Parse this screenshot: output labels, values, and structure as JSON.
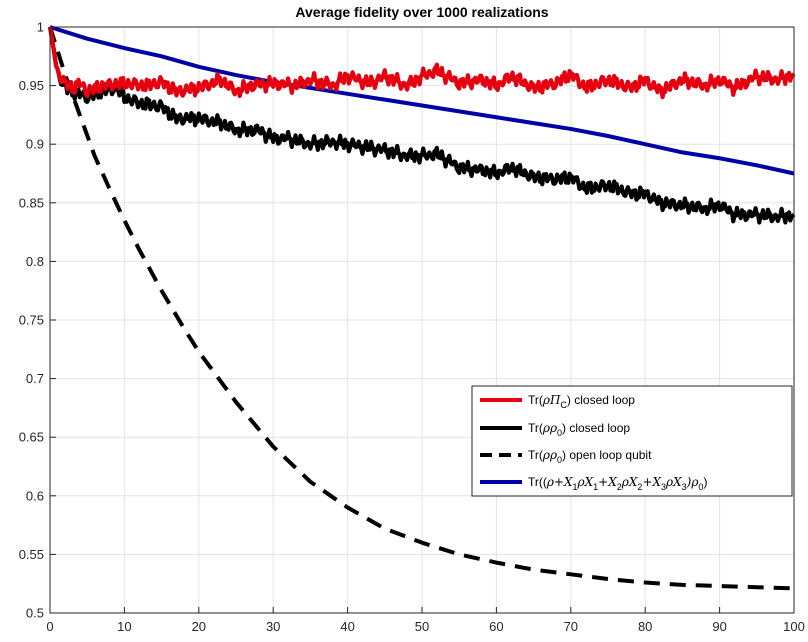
{
  "chart_data": {
    "type": "line",
    "title": "Average fidelity  over 1000 realizations",
    "xlabel": "",
    "ylabel": "",
    "xlim": [
      0,
      100
    ],
    "ylim": [
      0.5,
      1
    ],
    "xticks": [
      "0",
      "10",
      "20",
      "30",
      "40",
      "50",
      "60",
      "70",
      "80",
      "90",
      "100"
    ],
    "yticks": [
      "0.5",
      "0.55",
      "0.6",
      "0.65",
      "0.7",
      "0.75",
      "0.8",
      "0.85",
      "0.9",
      "0.95",
      "1"
    ],
    "grid": true,
    "legend_position": "lower-right",
    "series": [
      {
        "name": "Tr(ρΠ_C) closed loop",
        "color": "#e6000f",
        "style": "solid",
        "x": [
          0,
          1,
          2,
          3,
          4,
          5,
          7,
          10,
          13,
          15,
          17,
          20,
          23,
          25,
          27,
          30,
          33,
          35,
          38,
          40,
          43,
          45,
          48,
          50,
          52,
          55,
          58,
          60,
          62,
          65,
          68,
          70,
          72,
          75,
          78,
          80,
          82,
          85,
          88,
          90,
          92,
          95,
          98,
          100
        ],
        "values": [
          1,
          0.962,
          0.952,
          0.948,
          0.952,
          0.945,
          0.95,
          0.952,
          0.95,
          0.953,
          0.945,
          0.948,
          0.955,
          0.945,
          0.95,
          0.952,
          0.95,
          0.955,
          0.95,
          0.958,
          0.952,
          0.958,
          0.95,
          0.958,
          0.963,
          0.952,
          0.955,
          0.95,
          0.958,
          0.948,
          0.952,
          0.96,
          0.948,
          0.955,
          0.948,
          0.955,
          0.945,
          0.955,
          0.95,
          0.955,
          0.948,
          0.958,
          0.955,
          0.96
        ]
      },
      {
        "name": "Tr(ρρ_0) closed loop",
        "color": "#000000",
        "style": "solid",
        "x": [
          0,
          1,
          2,
          3,
          5,
          7,
          9,
          10,
          12,
          15,
          17,
          20,
          23,
          25,
          28,
          30,
          32,
          35,
          38,
          40,
          42,
          45,
          48,
          50,
          52,
          55,
          58,
          60,
          62,
          65,
          68,
          70,
          72,
          75,
          78,
          80,
          82,
          85,
          88,
          90,
          92,
          95,
          98,
          100
        ],
        "values": [
          1,
          0.962,
          0.948,
          0.945,
          0.94,
          0.945,
          0.948,
          0.94,
          0.935,
          0.932,
          0.922,
          0.922,
          0.918,
          0.912,
          0.912,
          0.905,
          0.905,
          0.9,
          0.902,
          0.9,
          0.898,
          0.895,
          0.89,
          0.89,
          0.892,
          0.88,
          0.878,
          0.875,
          0.88,
          0.872,
          0.87,
          0.872,
          0.862,
          0.865,
          0.858,
          0.858,
          0.85,
          0.848,
          0.845,
          0.848,
          0.84,
          0.84,
          0.838,
          0.84
        ]
      },
      {
        "name": "Tr(ρρ_0) open loop qubit",
        "color": "#000000",
        "style": "dashed",
        "x": [
          0,
          2,
          4,
          6,
          8,
          10,
          12,
          15,
          18,
          20,
          25,
          30,
          35,
          40,
          45,
          50,
          55,
          60,
          65,
          70,
          75,
          80,
          85,
          90,
          95,
          100
        ],
        "values": [
          1,
          0.96,
          0.925,
          0.89,
          0.862,
          0.835,
          0.81,
          0.775,
          0.743,
          0.723,
          0.68,
          0.642,
          0.612,
          0.59,
          0.572,
          0.56,
          0.55,
          0.543,
          0.537,
          0.533,
          0.529,
          0.526,
          0.524,
          0.523,
          0.522,
          0.521
        ]
      },
      {
        "name": "Tr((ρ+X_1ρX_1+X_2ρX_2+X_3ρX_3)ρ_0)",
        "color": "#0000a8",
        "style": "solid",
        "x": [
          0,
          5,
          10,
          15,
          20,
          25,
          30,
          35,
          40,
          45,
          50,
          55,
          60,
          65,
          70,
          75,
          80,
          85,
          90,
          95,
          100
        ],
        "values": [
          1,
          0.99,
          0.982,
          0.975,
          0.966,
          0.959,
          0.953,
          0.948,
          0.943,
          0.938,
          0.933,
          0.928,
          0.923,
          0.918,
          0.913,
          0.907,
          0.9,
          0.893,
          0.888,
          0.882,
          0.875
        ]
      }
    ]
  },
  "legend": {
    "entries": [
      {
        "prefix": "Tr(",
        "math": "ρΠ",
        "sub": "C",
        "suffix": ") closed loop"
      },
      {
        "prefix": "Tr(",
        "math": "ρρ",
        "sub": "0",
        "suffix": ") closed loop"
      },
      {
        "prefix": "Tr(",
        "math": "ρρ",
        "sub": "0",
        "suffix": ") open loop qubit"
      },
      {
        "prefix": "Tr((",
        "math": "ρ+X",
        "sub": "1",
        "mid1": "ρX",
        "sub2": "1",
        "mid2": "+X",
        "sub3": "2",
        "mid3": "ρX",
        "sub4": "2",
        "mid4": "+X",
        "sub5": "3",
        "mid5": "ρX",
        "sub6": "3",
        "mid6": ")ρ",
        "sub7": "0",
        "suffix": ")"
      }
    ]
  }
}
